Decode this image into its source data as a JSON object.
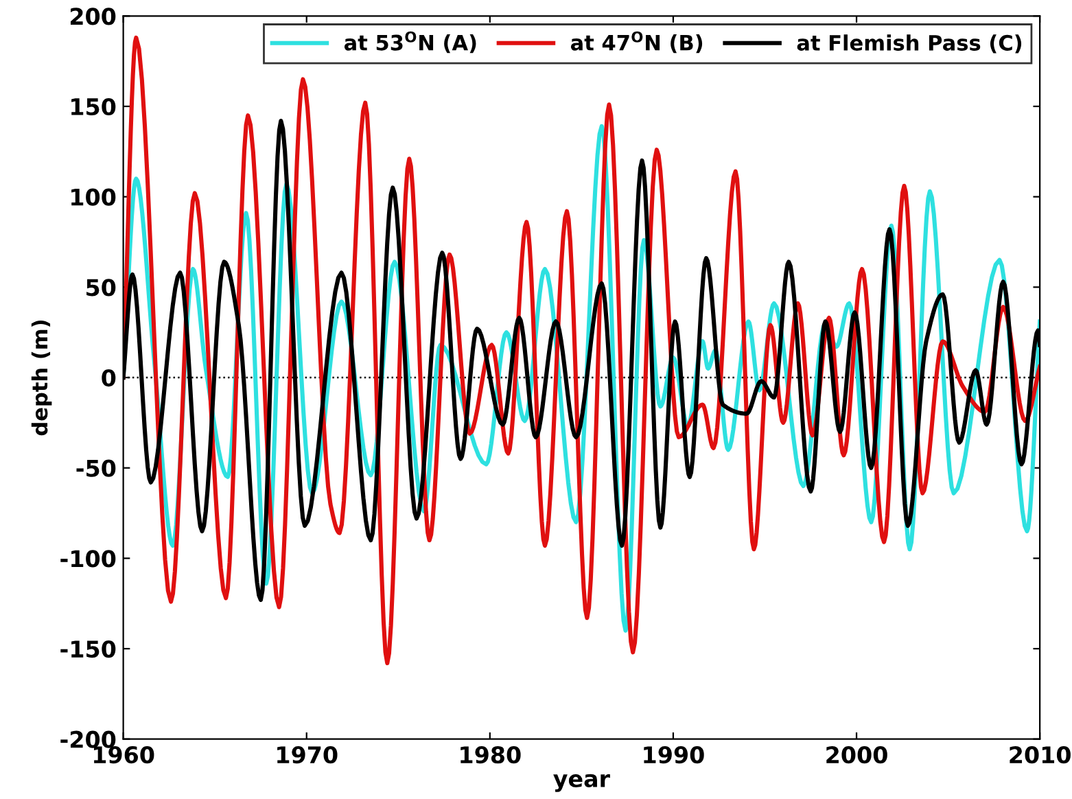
{
  "chart_data": {
    "type": "line",
    "xlabel": "year",
    "ylabel": "depth (m)",
    "xlim": [
      1960,
      2010
    ],
    "ylim": [
      -200,
      200
    ],
    "xticks": [
      1960,
      1970,
      1980,
      1990,
      2000,
      2010
    ],
    "yticks": [
      -200,
      -150,
      -100,
      -50,
      0,
      50,
      100,
      150,
      200
    ],
    "grid": false,
    "legend": "top right",
    "line_style": "solid",
    "marker": "none",
    "ref_lines": [
      {
        "axis": "y",
        "value": 0,
        "color": "#000000",
        "line_style": "dotted"
      }
    ],
    "series": [
      {
        "name": "at 53$^{O}$N (A)",
        "color": "#2ee0e0",
        "x": [
          1960,
          1960.7,
          1961.7,
          1962.7,
          1963.8,
          1964.5,
          1965.7,
          1966.7,
          1967.8,
          1968.9,
          1970.3,
          1971.9,
          1973.5,
          1974.8,
          1976.4,
          1977.3,
          1979.8,
          1980.9,
          1981.9,
          1983,
          1984.7,
          1986.1,
          1987.4,
          1988.4,
          1989.3,
          1990,
          1990.8,
          1991.6,
          1991.9,
          1992.3,
          1993,
          1994.1,
          1994.7,
          1995.5,
          1997.1,
          1998.3,
          1998.9,
          1999.6,
          2000.8,
          2001.9,
          2002.9,
          2004,
          2005.3,
          2007.8,
          2009.3,
          2010
        ],
        "values": [
          0,
          110,
          8,
          -93,
          60,
          5,
          -55,
          91,
          -114,
          107,
          -64,
          42,
          -54,
          64,
          -74,
          18,
          -48,
          25,
          -24,
          60,
          -80,
          139,
          -140,
          76,
          -16,
          11,
          -27,
          20,
          5,
          15,
          -40,
          31,
          -7,
          41,
          -60,
          30,
          17,
          41,
          -80,
          84,
          -95,
          103,
          -64,
          65,
          -85,
          31
        ]
      },
      {
        "name": "at 47$^{O}$N (B)",
        "color": "#e01010",
        "x": [
          1960,
          1960.7,
          1962.6,
          1963.9,
          1965.6,
          1966.8,
          1968.5,
          1969.8,
          1971.3,
          1971.8,
          1973.2,
          1974.4,
          1975.6,
          1976.7,
          1977.8,
          1978.9,
          1980.1,
          1981,
          1982,
          1983,
          1984.2,
          1985.3,
          1986.5,
          1987.8,
          1989.1,
          1990.3,
          1991.6,
          1992.2,
          1993.4,
          1994.4,
          1995.3,
          1996,
          1996.8,
          1997.6,
          1998.5,
          1999.3,
          2000.3,
          2001.5,
          2002.6,
          2003.6,
          2004.7,
          2005.8,
          2007,
          2008,
          2009.2,
          2010
        ],
        "values": [
          0,
          188,
          -124,
          102,
          -122,
          145,
          -127,
          165,
          -70,
          -86,
          152,
          -158,
          121,
          -90,
          68,
          -31,
          18,
          -42,
          86,
          -93,
          92,
          -133,
          151,
          -152,
          126,
          -33,
          -15,
          -39,
          114,
          -95,
          29,
          -25,
          41,
          -32,
          33,
          -43,
          60,
          -91,
          106,
          -64,
          20,
          -5,
          -19,
          39,
          -24,
          6
        ]
      },
      {
        "name": "at Flemish Pass (C)",
        "color": "#000000",
        "x": [
          1960,
          1960.5,
          1961.5,
          1963.1,
          1964.3,
          1965.5,
          1966.3,
          1967.5,
          1968.6,
          1969.9,
          1971.9,
          1973.5,
          1974.7,
          1976,
          1977.4,
          1978.4,
          1979.3,
          1980.7,
          1981.6,
          1982.5,
          1983.6,
          1984.7,
          1986.1,
          1987.2,
          1988.3,
          1989.3,
          1990.1,
          1990.9,
          1991.8,
          1992.7,
          1994,
          1994.8,
          1995.5,
          1996.3,
          1997.5,
          1998.3,
          1999.1,
          1999.9,
          2000.8,
          2001.8,
          2002.8,
          2003.8,
          2004.7,
          2005.6,
          2006.5,
          2007.1,
          2008,
          2009,
          2009.9,
          2010
        ],
        "values": [
          0,
          57,
          -58,
          58,
          -85,
          64,
          29,
          -123,
          142,
          -82,
          58,
          -90,
          105,
          -78,
          69,
          -45,
          27,
          -26,
          33,
          -33,
          31,
          -33,
          52,
          -93,
          120,
          -83,
          31,
          -55,
          66,
          -15,
          -20,
          -2,
          -11,
          64,
          -63,
          31,
          -30,
          36,
          -50,
          82,
          -82,
          20,
          46,
          -36,
          4,
          -26,
          53,
          -48,
          26,
          18
        ]
      }
    ]
  }
}
